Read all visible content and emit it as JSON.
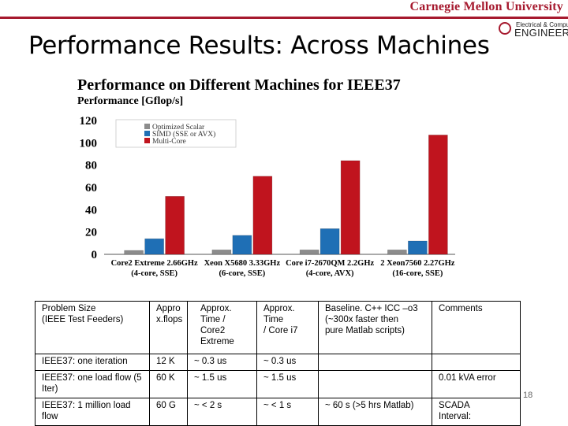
{
  "header": {
    "university": "Carnegie Mellon University",
    "dept_top": "Electrical & Computer",
    "dept_bottom": "ENGINEERING",
    "accent": "#a6192e"
  },
  "slide": {
    "title": "Performance Results: Across Machines",
    "page_number": "18"
  },
  "chart_data": {
    "type": "bar",
    "title": "Performance on Different Machines for IEEE37",
    "ylabel": "Performance [Gflop/s]",
    "ylim": [
      0,
      120
    ],
    "yticks": [
      0,
      20,
      40,
      60,
      80,
      100,
      120
    ],
    "categories": [
      [
        "Core2 Extreme 2.66GHz",
        "(4-core, SSE)"
      ],
      [
        "Xeon X5680 3.33GHz",
        "(6-core, SSE)"
      ],
      [
        "Core i7-2670QM 2.2GHz",
        "(4-core, AVX)"
      ],
      [
        "2 Xeon7560 2.27GHz",
        "(16-core, SSE)"
      ]
    ],
    "series": [
      {
        "name": "Optimized Scalar",
        "color": "#8c8c8c",
        "values": [
          3.5,
          4,
          4,
          4
        ]
      },
      {
        "name": "SIMD (SSE or AVX)",
        "color": "#1f6fb5",
        "values": [
          14,
          17,
          23,
          12
        ]
      },
      {
        "name": "Multi-Core",
        "color": "#c0141e",
        "values": [
          52,
          70,
          84,
          107
        ]
      }
    ],
    "legend": "top-left",
    "grid": false
  },
  "table": {
    "header": [
      "Problem Size\n(IEEE Test Feeders)",
      "Appro\nx.flops",
      "Approx.\nTime /\nCore2\nExtreme",
      "Approx.\nTime\n/ Core i7",
      "Baseline. C++ ICC –o3\n(~300x faster then\npure Matlab scripts)",
      "Comments"
    ],
    "rows": [
      [
        "IEEE37: one iteration",
        "12 K",
        "~ 0.3 us",
        "~ 0.3 us",
        "",
        ""
      ],
      [
        "IEEE37: one load flow (5\nIter)",
        "60 K",
        "~ 1.5 us",
        "~ 1.5 us",
        "",
        "0.01 kVA error"
      ],
      [
        "IEEE37: 1 million load\nflow",
        "60 G",
        "~ < 2 s",
        "~ < 1 s",
        "~ 60 s (>5 hrs Matlab)",
        "SCADA\nInterval:"
      ]
    ]
  }
}
